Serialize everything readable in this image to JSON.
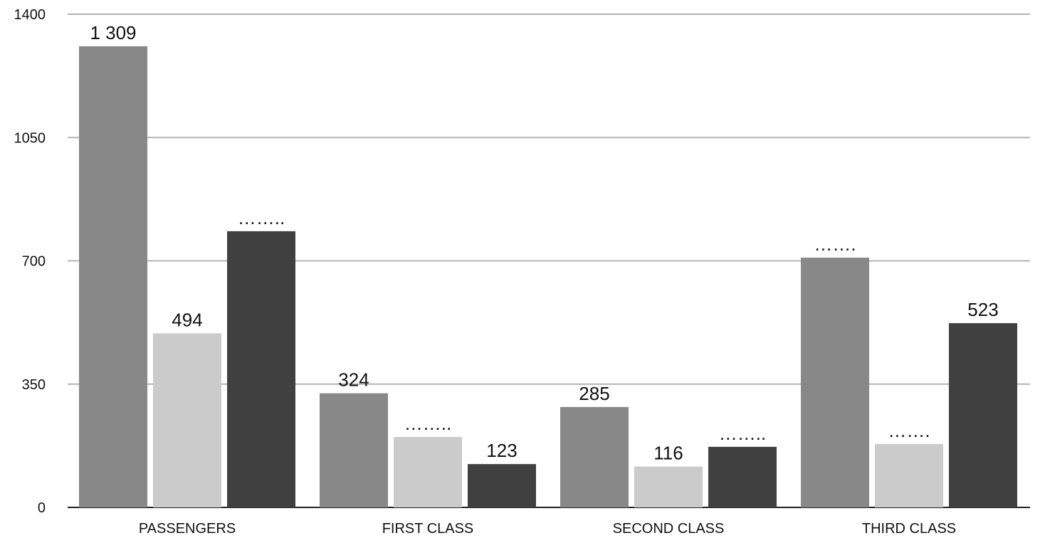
{
  "chart_data": {
    "type": "bar",
    "title": "",
    "xlabel": "",
    "ylabel": "",
    "ylim": [
      0,
      1400
    ],
    "yticks": [
      0,
      350,
      700,
      1050,
      1400
    ],
    "grid": true,
    "legend": "none",
    "categories": [
      "PASSENGERS",
      "FIRST CLASS",
      "SECOND CLASS",
      "THIRD CLASS"
    ],
    "series": [
      {
        "color": "#888888",
        "values": [
          1309,
          324,
          285,
          709
        ],
        "labels": [
          "1 309",
          "324",
          "285",
          "……."
        ]
      },
      {
        "color": "#cbcbcb",
        "values": [
          494,
          200,
          116,
          180
        ],
        "labels": [
          "494",
          "……..",
          "116",
          "……."
        ]
      },
      {
        "color": "#404040",
        "values": [
          784,
          123,
          172,
          523
        ],
        "labels": [
          "……..",
          "123",
          "……..",
          "523"
        ]
      }
    ]
  }
}
